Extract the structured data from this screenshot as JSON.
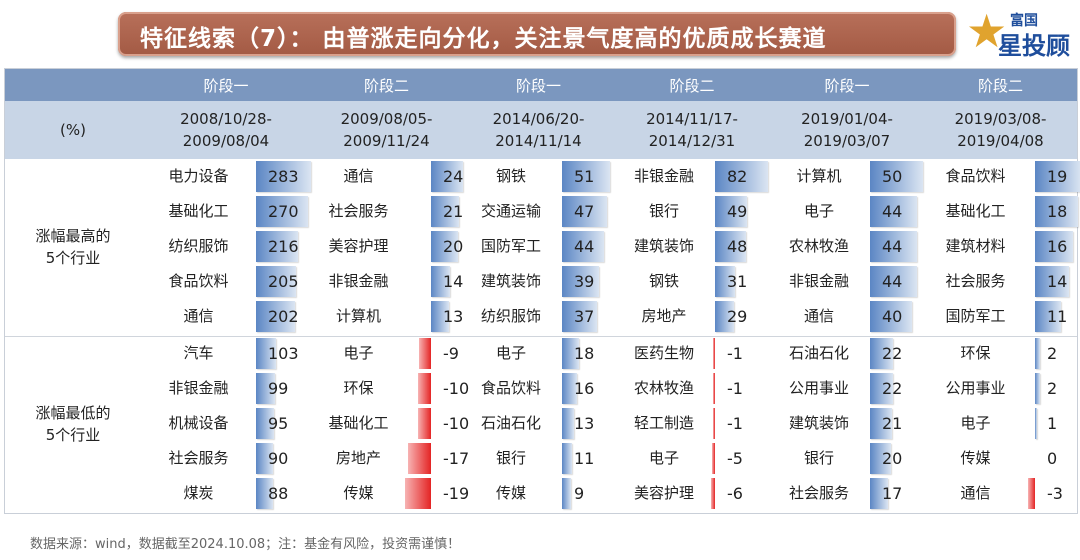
{
  "title": "特征线索（7）：    由普涨走向分化，关注景气度高的优质成长赛道",
  "logo": {
    "line1": "富国",
    "line2": "星投顾",
    "text": "富国星投顾"
  },
  "chart_data": {
    "type": "table",
    "unit_label": "(%)",
    "section_labels": [
      "涨幅最高的\n5个行业",
      "涨幅最低的\n5个行业"
    ],
    "colors": {
      "positive_bar": "#5b86c4",
      "negative_bar": "#e42424",
      "header_dark": "#7b97bf",
      "header_light": "#c8d5e6"
    },
    "groups": [
      {
        "stage": "阶段一",
        "period": [
          "2008/10/28-",
          "2009/08/04"
        ],
        "top": [
          [
            "电力设备",
            283
          ],
          [
            "基础化工",
            270
          ],
          [
            "纺织服饰",
            216
          ],
          [
            "食品饮料",
            205
          ],
          [
            "通信",
            202
          ]
        ],
        "bottom": [
          [
            "汽车",
            103
          ],
          [
            "非银金融",
            99
          ],
          [
            "机械设备",
            95
          ],
          [
            "社会服务",
            90
          ],
          [
            "煤炭",
            88
          ]
        ]
      },
      {
        "stage": "阶段二",
        "period": [
          "2009/08/05-",
          "2009/11/24"
        ],
        "top": [
          [
            "通信",
            24
          ],
          [
            "社会服务",
            21
          ],
          [
            "美容护理",
            20
          ],
          [
            "非银金融",
            14
          ],
          [
            "计算机",
            13
          ]
        ],
        "bottom": [
          [
            "电子",
            -9
          ],
          [
            "环保",
            -10
          ],
          [
            "基础化工",
            -10
          ],
          [
            "房地产",
            -17
          ],
          [
            "传媒",
            -19
          ]
        ]
      },
      {
        "stage": "阶段一",
        "period": [
          "2014/06/20-",
          "2014/11/14"
        ],
        "top": [
          [
            "钢铁",
            51
          ],
          [
            "交通运输",
            47
          ],
          [
            "国防军工",
            44
          ],
          [
            "建筑装饰",
            39
          ],
          [
            "纺织服饰",
            37
          ]
        ],
        "bottom": [
          [
            "电子",
            18
          ],
          [
            "食品饮料",
            16
          ],
          [
            "石油石化",
            13
          ],
          [
            "银行",
            11
          ],
          [
            "传媒",
            9
          ]
        ]
      },
      {
        "stage": "阶段二",
        "period": [
          "2014/11/17-",
          "2014/12/31"
        ],
        "top": [
          [
            "非银金融",
            82
          ],
          [
            "银行",
            49
          ],
          [
            "建筑装饰",
            48
          ],
          [
            "钢铁",
            31
          ],
          [
            "房地产",
            29
          ]
        ],
        "bottom": [
          [
            "医药生物",
            -1
          ],
          [
            "农林牧渔",
            -1
          ],
          [
            "轻工制造",
            -1
          ],
          [
            "电子",
            -5
          ],
          [
            "美容护理",
            -6
          ]
        ]
      },
      {
        "stage": "阶段一",
        "period": [
          "2019/01/04-",
          "2019/03/07"
        ],
        "top": [
          [
            "计算机",
            50
          ],
          [
            "电子",
            44
          ],
          [
            "农林牧渔",
            44
          ],
          [
            "非银金融",
            44
          ],
          [
            "通信",
            40
          ]
        ],
        "bottom": [
          [
            "石油石化",
            22
          ],
          [
            "公用事业",
            22
          ],
          [
            "建筑装饰",
            21
          ],
          [
            "银行",
            20
          ],
          [
            "社会服务",
            17
          ]
        ]
      },
      {
        "stage": "阶段二",
        "period": [
          "2019/03/08-",
          "2019/04/08"
        ],
        "top": [
          [
            "食品饮料",
            19
          ],
          [
            "基础化工",
            18
          ],
          [
            "建筑材料",
            16
          ],
          [
            "社会服务",
            14
          ],
          [
            "国防军工",
            11
          ]
        ],
        "bottom": [
          [
            "环保",
            2
          ],
          [
            "公用事业",
            2
          ],
          [
            "电子",
            1
          ],
          [
            "传媒",
            0
          ],
          [
            "通信",
            -3
          ]
        ]
      }
    ]
  },
  "footer": "数据来源：wind，数据截至2024.10.08；注：基金有风险，投资需谨慎！"
}
